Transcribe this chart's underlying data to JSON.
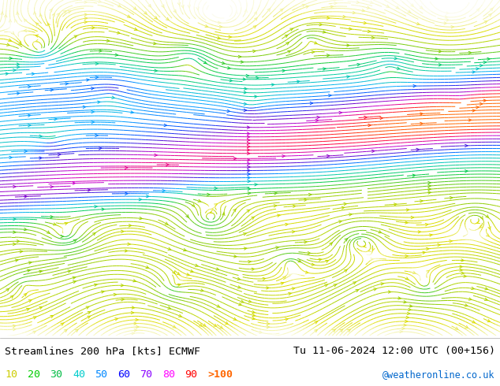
{
  "title_left": "Streamlines 200 hPa [kts] ECMWF",
  "title_right": "Tu 11-06-2024 12:00 UTC (00+156)",
  "credit": "@weatheronline.co.uk",
  "legend_values": [
    "10",
    "20",
    "30",
    "40",
    "50",
    "60",
    "70",
    "80",
    "90",
    ">100"
  ],
  "legend_colors": [
    "#cccc00",
    "#00cc00",
    "#00bb44",
    "#00cccc",
    "#0088ff",
    "#0000ff",
    "#8800ff",
    "#ff00ff",
    "#ff0000",
    "#ff6600"
  ],
  "bg_color": "#ffffff",
  "font_color": "#000000",
  "figsize": [
    6.34,
    4.9
  ],
  "dpi": 100,
  "seed": 42,
  "cmap_stops": [
    [
      0.0,
      "#ffffff"
    ],
    [
      0.05,
      "#dddd00"
    ],
    [
      0.15,
      "#88cc00"
    ],
    [
      0.25,
      "#00cc44"
    ],
    [
      0.35,
      "#00ccaa"
    ],
    [
      0.45,
      "#00aaff"
    ],
    [
      0.55,
      "#0044ff"
    ],
    [
      0.65,
      "#6600cc"
    ],
    [
      0.75,
      "#cc00cc"
    ],
    [
      0.85,
      "#ff0044"
    ],
    [
      0.95,
      "#ff4400"
    ],
    [
      1.0,
      "#ff6600"
    ]
  ]
}
